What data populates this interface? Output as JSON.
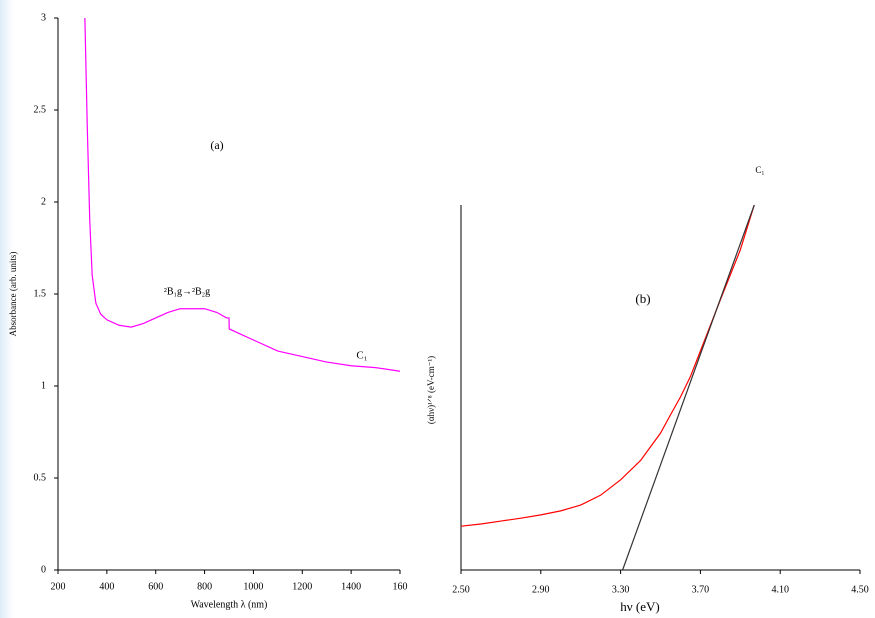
{
  "chart_data": [
    {
      "type": "line",
      "xlabel": "Wavelength λ (nm)",
      "ylabel": "Absorbance (arb. units)",
      "annotations": [
        "(a)",
        "²B₁g→²B₂g",
        "C₁"
      ],
      "xlim": [
        200,
        1600
      ],
      "ylim": [
        0,
        3
      ],
      "xticks": [
        200,
        400,
        600,
        800,
        1000,
        1200,
        1400,
        {
          "value": 1600,
          "label": "160"
        }
      ],
      "yticks": [
        0,
        0.5,
        1,
        1.5,
        2,
        2.5,
        3
      ],
      "series": [
        {
          "color": "#ff00ff",
          "x": [
            310,
            320,
            330,
            340,
            355,
            375,
            400,
            450,
            500,
            550,
            600,
            650,
            700,
            750,
            800,
            850,
            890,
            900,
            901,
            950,
            1000,
            1100,
            1200,
            1300,
            1400,
            1500,
            1600
          ],
          "values": [
            3.0,
            2.4,
            1.9,
            1.6,
            1.45,
            1.39,
            1.36,
            1.33,
            1.32,
            1.34,
            1.37,
            1.4,
            1.42,
            1.42,
            1.42,
            1.4,
            1.37,
            1.37,
            1.31,
            1.28,
            1.25,
            1.19,
            1.16,
            1.13,
            1.11,
            1.1,
            1.08
          ]
        }
      ]
    },
    {
      "type": "line",
      "xlabel": "hν (eV)",
      "ylabel": "(αhν)¹ᐟ⁸ (eV-cm⁻¹)",
      "annotations": [
        "(b)",
        "C₁"
      ],
      "xlim": [
        2.5,
        4.5
      ],
      "ylim": [
        0,
        1
      ],
      "xticks": [
        {
          "value": 2.5,
          "label": "2.50"
        },
        {
          "value": 2.9,
          "label": "2.90"
        },
        {
          "value": 3.3,
          "label": "3.30"
        },
        {
          "value": 3.7,
          "label": "3.70"
        },
        {
          "value": 4.1,
          "label": "4.10"
        },
        {
          "value": 4.5,
          "label": "4.50"
        }
      ],
      "series": [
        {
          "color": "#ff0000",
          "x": [
            2.5,
            2.6,
            2.7,
            2.8,
            2.9,
            3.0,
            3.1,
            3.2,
            3.3,
            3.4,
            3.5,
            3.55,
            3.6,
            3.65,
            3.7,
            3.8,
            3.9,
            3.97
          ],
          "values": [
            0.12,
            0.126,
            0.134,
            0.142,
            0.151,
            0.162,
            0.178,
            0.205,
            0.247,
            0.3,
            0.375,
            0.425,
            0.474,
            0.53,
            0.6,
            0.74,
            0.877,
            1.0
          ]
        },
        {
          "color": "#333333",
          "x": [
            3.31,
            3.97
          ],
          "values": [
            0,
            1.0
          ]
        }
      ]
    }
  ]
}
